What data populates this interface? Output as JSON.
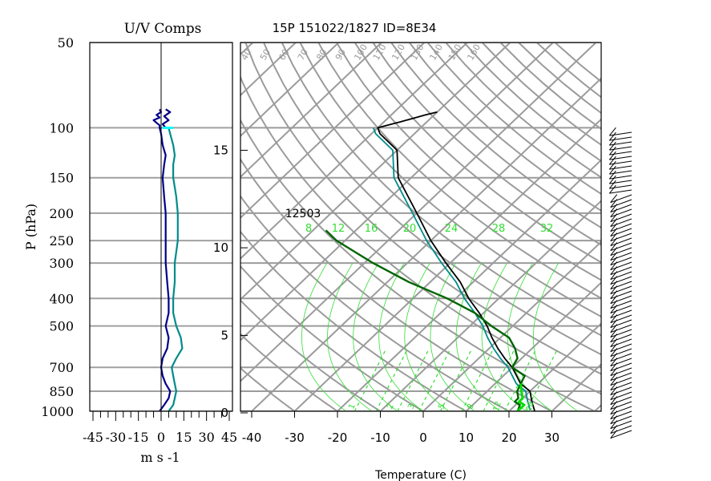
{
  "chart_data": [
    {
      "type": "line",
      "title": "U/V Comps",
      "xlabel": "m s -1",
      "ylabel": "P (hPa)",
      "x_ticks": [
        "-45",
        "-30",
        "-15",
        "0",
        "15",
        "30",
        "45"
      ],
      "y_ticks": [
        "50",
        "100",
        "150",
        "200",
        "250",
        "300",
        "400",
        "500",
        "700",
        "850",
        "1000"
      ],
      "xlim": [
        -45,
        45
      ],
      "ylim": [
        1000,
        50
      ],
      "y_scale": "log",
      "grid": true,
      "series": [
        {
          "color": "#00008b",
          "p": [
            1000,
            950,
            900,
            850,
            800,
            750,
            700,
            650,
            600,
            550,
            500,
            450,
            400,
            350,
            300,
            250,
            200,
            175,
            150,
            135,
            125,
            115,
            105,
            100,
            98,
            96,
            94,
            92,
            90,
            88,
            86
          ],
          "u": [
            -1,
            2,
            5,
            6,
            3,
            1,
            0,
            1,
            4,
            5,
            3,
            5,
            5,
            4,
            3,
            3,
            3,
            2,
            1,
            2,
            3,
            1,
            0,
            -1,
            -1,
            -3,
            -5,
            -1,
            -3,
            0,
            -1
          ]
        },
        {
          "color": "#008b8b",
          "p": [
            1000,
            950,
            900,
            850,
            800,
            750,
            700,
            650,
            600,
            550,
            500,
            450,
            400,
            350,
            300,
            250,
            200,
            175,
            150,
            135,
            125,
            115,
            105,
            100
          ],
          "u": [
            5,
            8,
            9,
            10,
            9,
            8,
            7,
            10,
            14,
            13,
            10,
            8,
            8,
            9,
            9,
            11,
            11,
            10,
            8,
            8,
            9,
            8,
            6,
            5
          ]
        },
        {
          "color": "#000080",
          "p": [
            100,
            97,
            94,
            91,
            88,
            86
          ],
          "u": [
            3,
            1,
            5,
            2,
            6,
            3
          ]
        }
      ]
    },
    {
      "type": "line",
      "title": "15P 151022/1827 ID=8E34",
      "xlabel": "Temperature (C)",
      "x_ticks": [
        "-40",
        "-30",
        "-20",
        "-10",
        "0",
        "10",
        "20",
        "30"
      ],
      "height_ticks": [
        "0",
        "5",
        "10",
        "15"
      ],
      "xlim": [
        -40,
        40
      ],
      "ylim": [
        1000,
        50
      ],
      "y_scale": "log",
      "skew": "skew-T",
      "annotation": "12503",
      "isotherm_labels": [
        "40",
        "50",
        "60",
        "70",
        "80",
        "90",
        "100",
        "110",
        "120",
        "130",
        "140",
        "150",
        "160"
      ],
      "mixing_ratio_labels": [
        "8",
        "12",
        "16",
        "20",
        "24",
        "28",
        "32"
      ],
      "bottom_labels": [
        "1",
        "2",
        "3",
        "5",
        "8",
        "12",
        "20"
      ],
      "series": [
        {
          "name": "",
          "color": "#000000",
          "p": [
            1000,
            925,
            850,
            800,
            700,
            650,
            600,
            550,
            500,
            450,
            400,
            350,
            300,
            250,
            200,
            150,
            120,
            105,
            100,
            95,
            90,
            88
          ],
          "t": [
            26,
            23,
            20,
            16,
            10,
            6,
            2,
            -2,
            -6,
            -11,
            -17,
            -23,
            -31,
            -40,
            -50,
            -63,
            -70,
            -78,
            -80,
            -76,
            -72,
            -70
          ]
        },
        {
          "name": "",
          "color": "#008b8b",
          "p": [
            1000,
            925,
            850,
            800,
            700,
            650,
            600,
            550,
            500,
            450,
            400,
            350,
            300,
            250,
            200,
            150,
            120,
            105,
            100
          ],
          "t": [
            25,
            22,
            19,
            15,
            9,
            5,
            1,
            -3,
            -7,
            -12,
            -18,
            -24,
            -32,
            -41,
            -51,
            -64,
            -71,
            -79,
            -81
          ]
        },
        {
          "name": "",
          "color": "#006400",
          "p": [
            1000,
            950,
            925,
            900,
            850,
            800,
            750,
            700,
            650,
            600,
            550,
            500,
            450,
            400,
            350,
            300,
            250,
            230
          ],
          "t": [
            22,
            21,
            19,
            19,
            17,
            16,
            15,
            10,
            9,
            6,
            2,
            -5,
            -12,
            -22,
            -35,
            -48,
            -62,
            -67
          ]
        },
        {
          "name": "",
          "color": "#00e000",
          "p": [
            1000,
            950,
            925,
            900,
            850,
            800
          ],
          "t": [
            22,
            22,
            20,
            20,
            18,
            16
          ]
        }
      ]
    }
  ]
}
